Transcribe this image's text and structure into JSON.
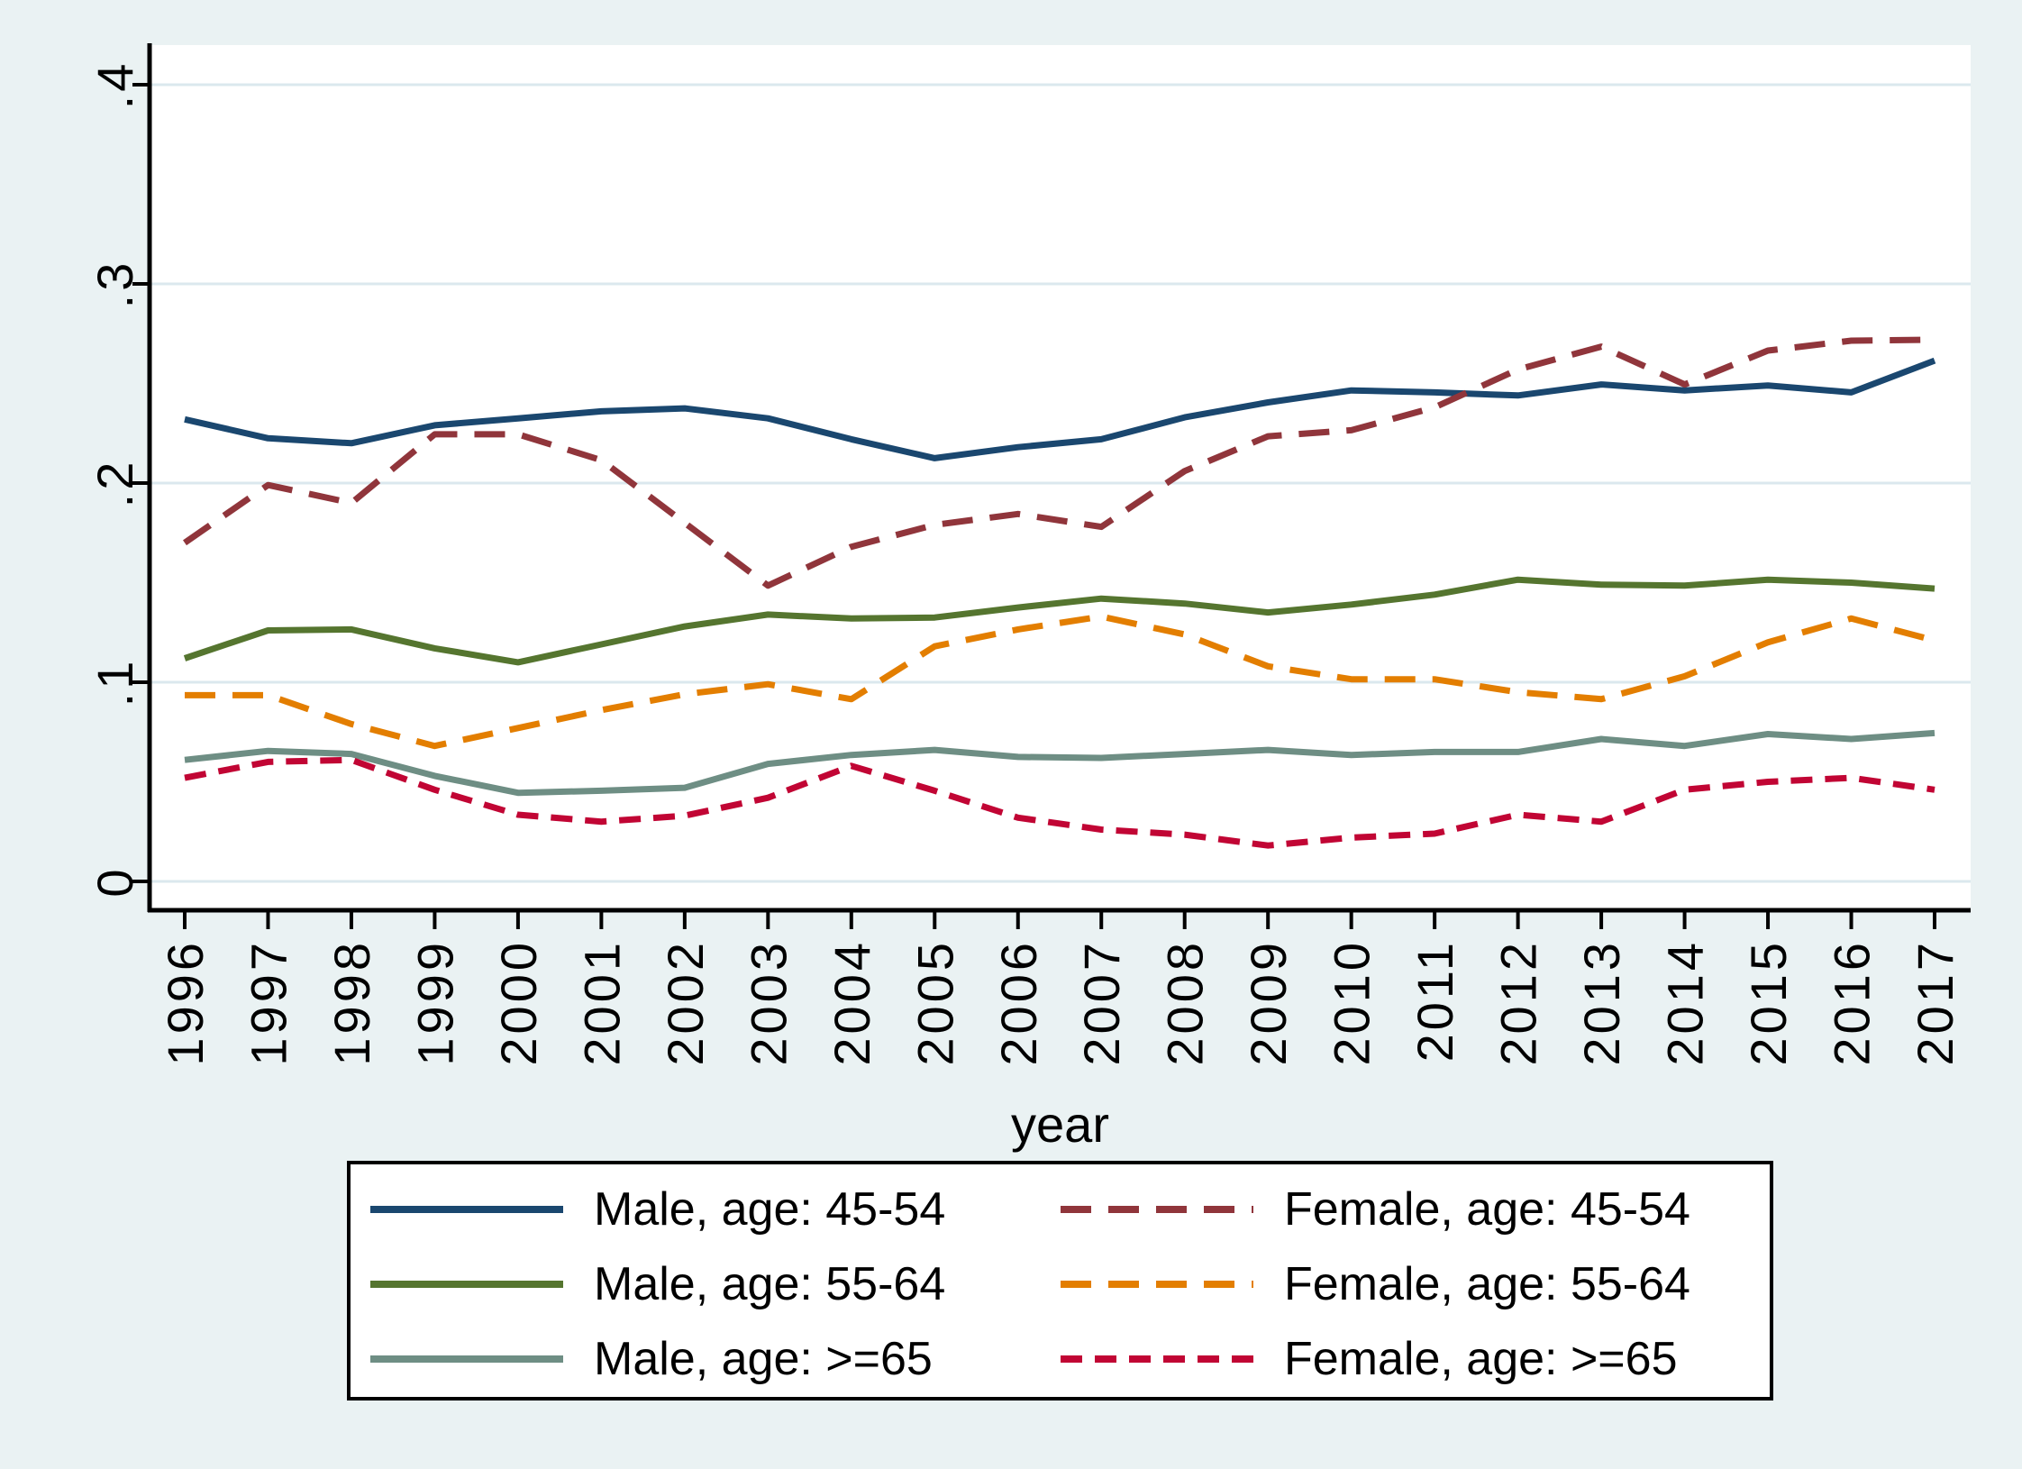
{
  "colors": {
    "background": "#eaf2f3",
    "plot_bg": "#ffffff",
    "grid": "#dbe8ee",
    "axis": "#000000",
    "text": "#000000",
    "legend_bg": "#ffffff",
    "legend_border": "#000000"
  },
  "chart_data": {
    "type": "line",
    "title": "",
    "xlabel": "year",
    "ylabel": "",
    "xlim": [
      1996,
      2017
    ],
    "ylim": [
      0,
      0.4
    ],
    "grid": true,
    "legend_position": "bottom",
    "x": [
      1996,
      1997,
      1998,
      1999,
      2000,
      2001,
      2002,
      2003,
      2004,
      2005,
      2006,
      2007,
      2008,
      2009,
      2010,
      2011,
      2012,
      2013,
      2014,
      2015,
      2016,
      2017
    ],
    "yticks": [
      {
        "value": 0.0,
        "label": "0"
      },
      {
        "value": 0.1,
        "label": ".1"
      },
      {
        "value": 0.2,
        "label": ".2"
      },
      {
        "value": 0.3,
        "label": ".3"
      },
      {
        "value": 0.4,
        "label": ".4"
      }
    ],
    "series": [
      {
        "name": "Male, age: 45-54",
        "color": "#1a476f",
        "line_style": "solid",
        "dash_pattern": "",
        "values": [
          0.232,
          0.2225,
          0.22,
          0.229,
          0.2325,
          0.236,
          0.2375,
          0.2325,
          0.222,
          0.2125,
          0.218,
          0.222,
          0.233,
          0.2405,
          0.2465,
          0.2455,
          0.244,
          0.2495,
          0.2465,
          0.249,
          0.2455,
          0.2615
        ]
      },
      {
        "name": "Male, age: 55-64",
        "color": "#55752f",
        "line_style": "solid",
        "dash_pattern": "",
        "values": [
          0.112,
          0.126,
          0.1265,
          0.117,
          0.11,
          0.119,
          0.128,
          0.134,
          0.132,
          0.1325,
          0.1375,
          0.142,
          0.1395,
          0.135,
          0.139,
          0.144,
          0.1515,
          0.149,
          0.1485,
          0.1515,
          0.15,
          0.147
        ]
      },
      {
        "name": "Male, age: >=65",
        "color": "#6e8e84",
        "line_style": "solid",
        "dash_pattern": "",
        "values": [
          0.061,
          0.0655,
          0.064,
          0.053,
          0.0445,
          0.0455,
          0.047,
          0.059,
          0.0635,
          0.066,
          0.0625,
          0.062,
          0.064,
          0.066,
          0.0635,
          0.065,
          0.065,
          0.0715,
          0.068,
          0.074,
          0.0715,
          0.0745
        ]
      },
      {
        "name": "Female, age: 45-54",
        "color": "#90353b",
        "line_style": "dashed",
        "dash_pattern": "34 19",
        "values": [
          0.17,
          0.199,
          0.19,
          0.2245,
          0.2245,
          0.2115,
          0.18,
          0.1485,
          0.168,
          0.179,
          0.1845,
          0.178,
          0.206,
          0.2235,
          0.2265,
          0.238,
          0.257,
          0.2685,
          0.2495,
          0.2665,
          0.2715,
          0.272
        ]
      },
      {
        "name": "Female, age: 55-64",
        "color": "#e37e00",
        "line_style": "dashed",
        "dash_pattern": "34 19",
        "values": [
          0.0935,
          0.0935,
          0.079,
          0.068,
          0.077,
          0.086,
          0.094,
          0.099,
          0.0915,
          0.118,
          0.1265,
          0.133,
          0.124,
          0.108,
          0.1015,
          0.1015,
          0.095,
          0.0915,
          0.103,
          0.12,
          0.132,
          0.121
        ]
      },
      {
        "name": "Female, age: >=65",
        "color": "#c10534",
        "line_style": "dashed",
        "dash_pattern": "24 14",
        "values": [
          0.052,
          0.06,
          0.061,
          0.046,
          0.0335,
          0.03,
          0.033,
          0.042,
          0.058,
          0.0455,
          0.032,
          0.026,
          0.0235,
          0.018,
          0.022,
          0.024,
          0.0335,
          0.03,
          0.046,
          0.05,
          0.052,
          0.046
        ]
      }
    ],
    "legend": {
      "left_column": [
        "Male, age: 45-54",
        "Male, age: 55-64",
        "Male, age: >=65"
      ],
      "right_column": [
        "Female, age: 45-54",
        "Female, age: 55-64",
        "Female, age: >=65"
      ]
    }
  }
}
